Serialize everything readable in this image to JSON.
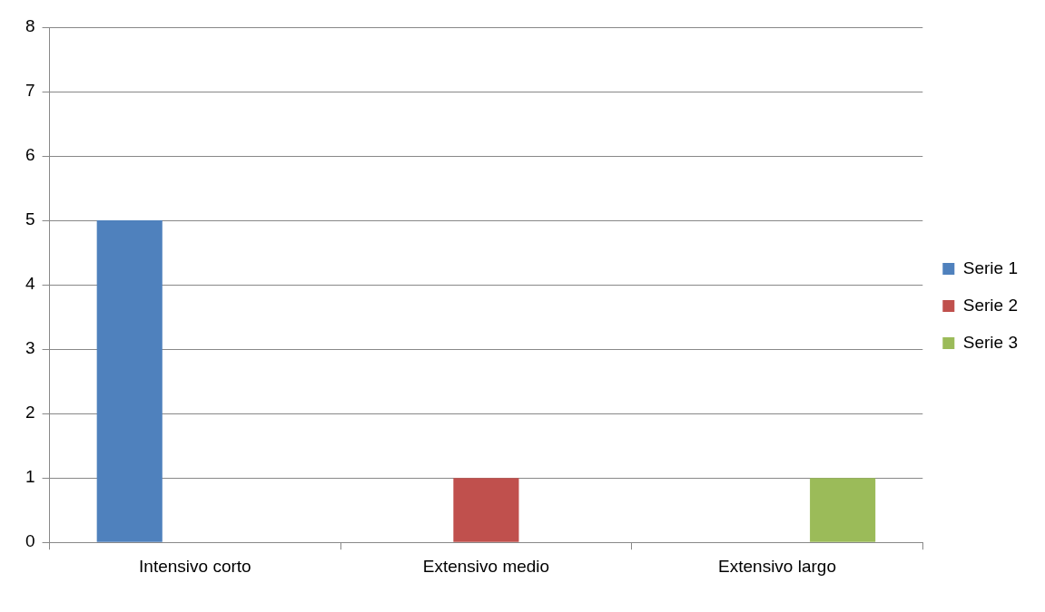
{
  "chart_data": {
    "type": "bar",
    "categories": [
      "Intensivo corto",
      "Extensivo medio",
      "Extensivo largo"
    ],
    "series": [
      {
        "name": "Serie 1",
        "color": "#4f81bd",
        "values": [
          5,
          null,
          null
        ]
      },
      {
        "name": "Serie 2",
        "color": "#c0504d",
        "values": [
          null,
          1,
          null
        ]
      },
      {
        "name": "Serie 3",
        "color": "#9bbb59",
        "values": [
          null,
          null,
          1
        ]
      }
    ],
    "ylim": [
      0,
      8
    ],
    "yticks": [
      0,
      1,
      2,
      3,
      4,
      5,
      6,
      7,
      8
    ],
    "grid": "y",
    "legend": "right"
  }
}
